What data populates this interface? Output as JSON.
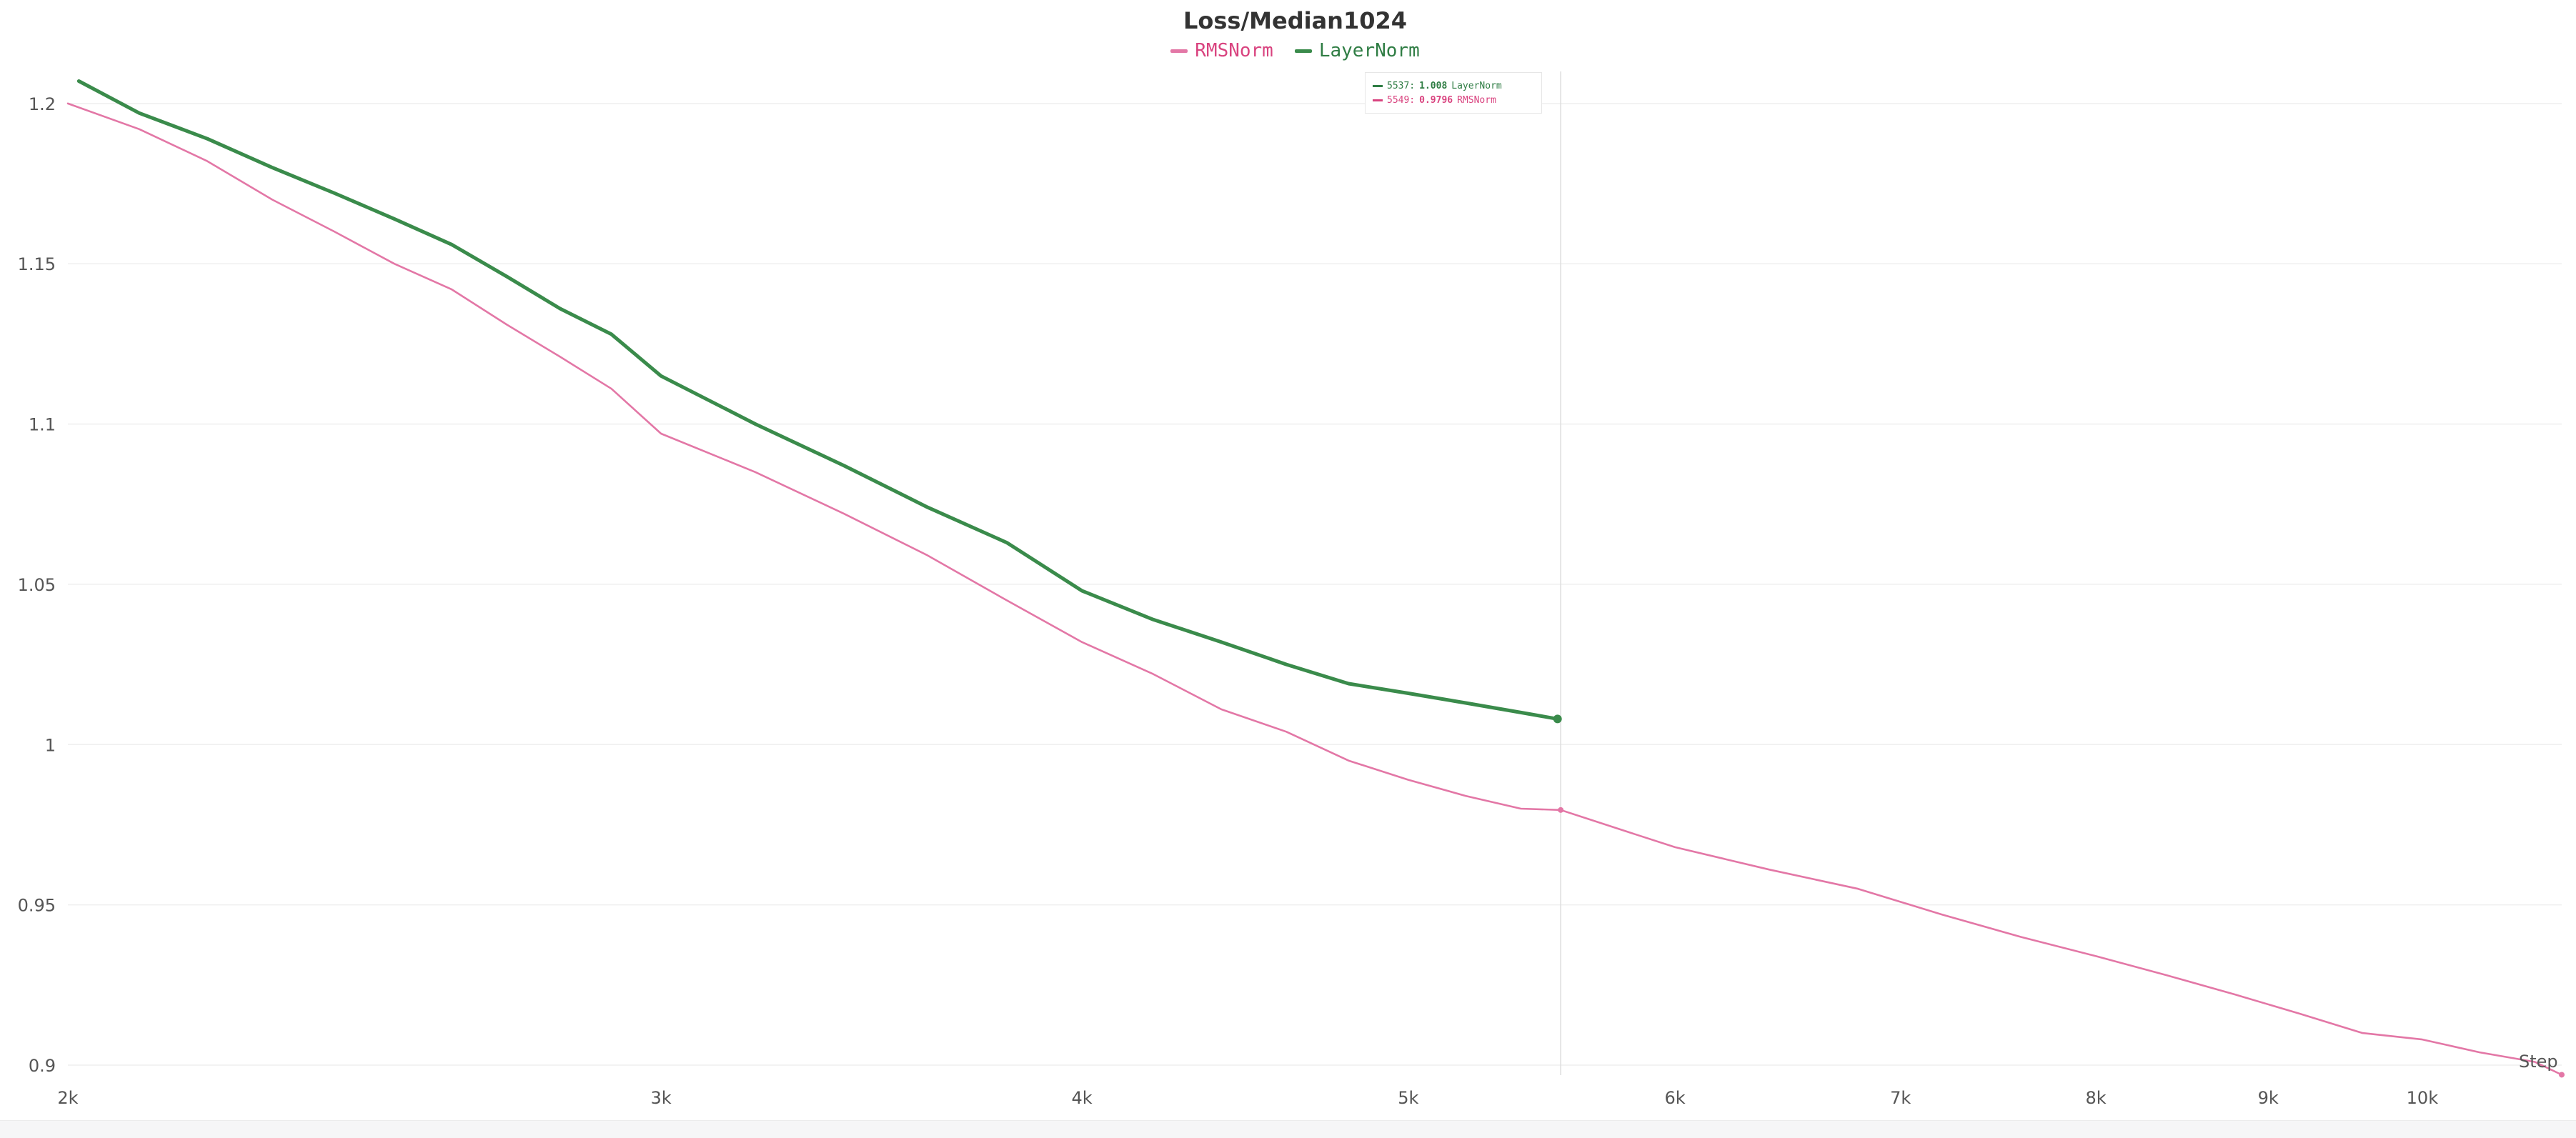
{
  "chart_data": {
    "type": "line",
    "title": "Loss/Median1024",
    "xlabel": "Step",
    "ylabel": "",
    "xlim": [
      2000,
      11000
    ],
    "ylim": [
      0.9,
      1.21
    ],
    "x_scale": "log",
    "legend_position": "top-center",
    "grid": true,
    "x_ticks": [
      {
        "value": 2000,
        "label": "2k"
      },
      {
        "value": 3000,
        "label": "3k"
      },
      {
        "value": 4000,
        "label": "4k"
      },
      {
        "value": 5000,
        "label": "5k"
      },
      {
        "value": 6000,
        "label": "6k"
      },
      {
        "value": 7000,
        "label": "7k"
      },
      {
        "value": 8000,
        "label": "8k"
      },
      {
        "value": 9000,
        "label": "9k"
      },
      {
        "value": 10000,
        "label": "10k"
      }
    ],
    "y_ticks": [
      {
        "value": 0.9,
        "label": "0.9"
      },
      {
        "value": 0.95,
        "label": "0.95"
      },
      {
        "value": 1.0,
        "label": "1"
      },
      {
        "value": 1.05,
        "label": "1.05"
      },
      {
        "value": 1.1,
        "label": "1.1"
      },
      {
        "value": 1.15,
        "label": "1.15"
      },
      {
        "value": 1.2,
        "label": "1.2"
      }
    ],
    "series": [
      {
        "name": "RMSNorm",
        "color": "#e377a6",
        "points": [
          [
            2000,
            1.2
          ],
          [
            2100,
            1.192
          ],
          [
            2200,
            1.182
          ],
          [
            2300,
            1.17
          ],
          [
            2400,
            1.16
          ],
          [
            2500,
            1.15
          ],
          [
            2600,
            1.142
          ],
          [
            2700,
            1.131
          ],
          [
            2800,
            1.121
          ],
          [
            2900,
            1.111
          ],
          [
            3000,
            1.097
          ],
          [
            3200,
            1.085
          ],
          [
            3400,
            1.072
          ],
          [
            3600,
            1.059
          ],
          [
            3800,
            1.045
          ],
          [
            4000,
            1.032
          ],
          [
            4200,
            1.022
          ],
          [
            4400,
            1.011
          ],
          [
            4600,
            1.004
          ],
          [
            4800,
            0.995
          ],
          [
            5000,
            0.989
          ],
          [
            5200,
            0.984
          ],
          [
            5400,
            0.98
          ],
          [
            5549,
            0.9796
          ],
          [
            5800,
            0.973
          ],
          [
            6000,
            0.968
          ],
          [
            6400,
            0.961
          ],
          [
            6800,
            0.955
          ],
          [
            7200,
            0.947
          ],
          [
            7600,
            0.94
          ],
          [
            8000,
            0.934
          ],
          [
            8400,
            0.928
          ],
          [
            8800,
            0.922
          ],
          [
            9200,
            0.916
          ],
          [
            9600,
            0.91
          ],
          [
            10000,
            0.908
          ],
          [
            10400,
            0.904
          ],
          [
            10800,
            0.901
          ],
          [
            11000,
            0.897
          ]
        ]
      },
      {
        "name": "LayerNorm",
        "color": "#3a8b4b",
        "points": [
          [
            2015,
            1.207
          ],
          [
            2100,
            1.197
          ],
          [
            2200,
            1.189
          ],
          [
            2300,
            1.18
          ],
          [
            2400,
            1.172
          ],
          [
            2500,
            1.164
          ],
          [
            2600,
            1.156
          ],
          [
            2700,
            1.146
          ],
          [
            2800,
            1.136
          ],
          [
            2900,
            1.128
          ],
          [
            3000,
            1.115
          ],
          [
            3200,
            1.1
          ],
          [
            3400,
            1.087
          ],
          [
            3600,
            1.074
          ],
          [
            3800,
            1.063
          ],
          [
            4000,
            1.048
          ],
          [
            4200,
            1.039
          ],
          [
            4400,
            1.032
          ],
          [
            4600,
            1.025
          ],
          [
            4800,
            1.019
          ],
          [
            5000,
            1.016
          ],
          [
            5200,
            1.013
          ],
          [
            5400,
            1.01
          ],
          [
            5537,
            1.008
          ]
        ]
      }
    ],
    "tooltip": {
      "rows": [
        {
          "series": "LayerNorm",
          "step": "5537:",
          "value": "1.008",
          "color": "#2f7d44"
        },
        {
          "series": "RMSNorm",
          "step": "5549:",
          "value": "0.9796",
          "color": "#d9437f"
        }
      ]
    },
    "hover_x": 5549
  }
}
